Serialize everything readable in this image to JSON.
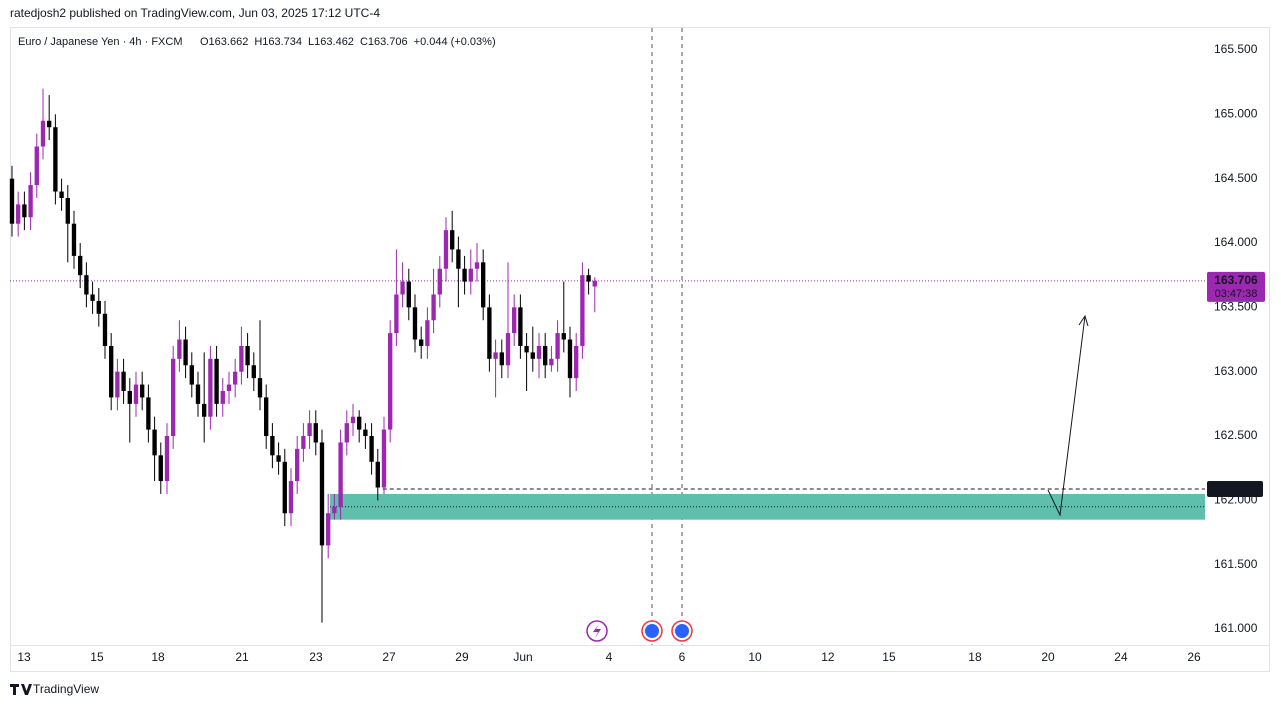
{
  "header": {
    "publisher": "ratedjosh2 published on TradingView.com, Jun 03, 2025 17:12 UTC-4"
  },
  "legend": {
    "symbol": "Euro / Japanese Yen · 4h · FXCM",
    "items": [
      "O163.662",
      "H163.734",
      "L163.462",
      "C163.706",
      "+0.044 (+0.03%)"
    ]
  },
  "footer": {
    "brand": "TradingView"
  },
  "chart_data": {
    "type": "candlestick",
    "up_color": "#9c27b0",
    "down_color": "#000000",
    "ylim": [
      160.876,
      165.671
    ],
    "yticks": [
      {
        "value": 161,
        "label": "161.000"
      },
      {
        "value": 161.5,
        "label": "161.500"
      },
      {
        "value": 162,
        "label": "162.000"
      },
      {
        "value": 162.5,
        "label": "162.500"
      },
      {
        "value": 163,
        "label": "163.000"
      },
      {
        "value": 163.5,
        "label": "163.500"
      },
      {
        "value": 164,
        "label": "164.000"
      },
      {
        "value": 164.5,
        "label": "164.500"
      },
      {
        "value": 165,
        "label": "165.000"
      },
      {
        "value": 165.5,
        "label": "165.500"
      }
    ],
    "xlim": [
      -0.32,
      192.42
    ],
    "xticks": [
      {
        "value": 1.94,
        "label": "13"
      },
      {
        "value": 13.71,
        "label": "15"
      },
      {
        "value": 23.55,
        "label": "18"
      },
      {
        "value": 37.1,
        "label": "21"
      },
      {
        "value": 49.03,
        "label": "23"
      },
      {
        "value": 60.81,
        "label": "27"
      },
      {
        "value": 72.58,
        "label": "29"
      },
      {
        "value": 82.42,
        "label": "Jun"
      },
      {
        "value": 96.29,
        "label": "4"
      },
      {
        "value": 108.06,
        "label": "6"
      },
      {
        "value": 119.84,
        "label": "10"
      },
      {
        "value": 131.6,
        "label": "12"
      },
      {
        "value": 141.45,
        "label": "15"
      },
      {
        "value": 155.32,
        "label": "18"
      },
      {
        "value": 167.1,
        "label": "20"
      },
      {
        "value": 178.87,
        "label": "24"
      },
      {
        "value": 190.65,
        "label": "26"
      }
    ],
    "ohlc": [
      [
        164.5,
        164.6,
        164.05,
        164.15
      ],
      [
        164.15,
        164.4,
        164.05,
        164.3
      ],
      [
        164.3,
        164.4,
        164.1,
        164.2
      ],
      [
        164.2,
        164.55,
        164.1,
        164.45
      ],
      [
        164.45,
        164.85,
        164.35,
        164.75
      ],
      [
        164.75,
        165.2,
        164.65,
        164.95
      ],
      [
        164.95,
        165.15,
        164.8,
        164.9
      ],
      [
        164.9,
        165.0,
        164.3,
        164.4
      ],
      [
        164.4,
        164.5,
        164.25,
        164.35
      ],
      [
        164.35,
        164.45,
        163.85,
        164.15
      ],
      [
        164.15,
        164.25,
        163.8,
        163.9
      ],
      [
        163.9,
        164.0,
        163.65,
        163.75
      ],
      [
        163.75,
        163.85,
        163.5,
        163.6
      ],
      [
        163.6,
        163.7,
        163.45,
        163.55
      ],
      [
        163.55,
        163.65,
        163.35,
        163.45
      ],
      [
        163.45,
        163.55,
        163.1,
        163.2
      ],
      [
        163.2,
        163.3,
        162.7,
        162.8
      ],
      [
        162.8,
        163.1,
        162.7,
        163.0
      ],
      [
        163.0,
        163.1,
        162.75,
        162.85
      ],
      [
        162.85,
        162.95,
        162.45,
        162.75
      ],
      [
        162.75,
        163.0,
        162.65,
        162.9
      ],
      [
        162.9,
        163.0,
        162.7,
        162.8
      ],
      [
        162.8,
        162.9,
        162.45,
        162.55
      ],
      [
        162.55,
        162.65,
        162.15,
        162.35
      ],
      [
        162.35,
        162.45,
        162.05,
        162.15
      ],
      [
        162.15,
        162.6,
        162.05,
        162.5
      ],
      [
        162.5,
        163.2,
        162.4,
        163.1
      ],
      [
        163.1,
        163.4,
        163.0,
        163.25
      ],
      [
        163.25,
        163.35,
        162.95,
        163.05
      ],
      [
        163.05,
        163.15,
        162.8,
        162.9
      ],
      [
        162.9,
        163.0,
        162.65,
        162.75
      ],
      [
        162.75,
        163.15,
        162.45,
        162.65
      ],
      [
        162.65,
        163.2,
        162.55,
        163.1
      ],
      [
        163.1,
        163.2,
        162.65,
        162.75
      ],
      [
        162.75,
        162.95,
        162.65,
        162.85
      ],
      [
        162.85,
        163.0,
        162.75,
        162.9
      ],
      [
        162.9,
        163.1,
        162.8,
        163.0
      ],
      [
        163.0,
        163.35,
        162.9,
        163.2
      ],
      [
        163.2,
        163.3,
        162.95,
        163.05
      ],
      [
        163.05,
        163.15,
        162.85,
        162.95
      ],
      [
        162.95,
        163.4,
        162.7,
        162.8
      ],
      [
        162.8,
        162.9,
        162.4,
        162.5
      ],
      [
        162.5,
        162.6,
        162.25,
        162.35
      ],
      [
        162.35,
        162.45,
        162.2,
        162.3
      ],
      [
        162.3,
        162.4,
        161.8,
        161.9
      ],
      [
        161.9,
        162.25,
        161.8,
        162.15
      ],
      [
        162.15,
        162.5,
        162.05,
        162.4
      ],
      [
        162.4,
        162.6,
        162.3,
        162.5
      ],
      [
        162.5,
        162.7,
        162.4,
        162.6
      ],
      [
        162.6,
        162.7,
        162.35,
        162.45
      ],
      [
        162.45,
        162.55,
        161.05,
        161.65
      ],
      [
        161.65,
        162.05,
        161.55,
        161.9
      ],
      [
        161.9,
        162.05,
        161.85,
        161.95
      ],
      [
        161.95,
        162.55,
        161.85,
        162.45
      ],
      [
        162.45,
        162.7,
        162.35,
        162.6
      ],
      [
        162.6,
        162.75,
        162.5,
        162.65
      ],
      [
        162.65,
        162.7,
        162.45,
        162.55
      ],
      [
        162.55,
        162.6,
        162.4,
        162.5
      ],
      [
        162.5,
        162.6,
        162.2,
        162.3
      ],
      [
        162.3,
        162.4,
        162.0,
        162.1
      ],
      [
        162.1,
        162.65,
        162.05,
        162.55
      ],
      [
        162.55,
        163.4,
        162.45,
        163.3
      ],
      [
        163.3,
        163.95,
        163.2,
        163.6
      ],
      [
        163.6,
        163.85,
        163.5,
        163.7
      ],
      [
        163.7,
        163.8,
        163.4,
        163.5
      ],
      [
        163.5,
        163.6,
        163.15,
        163.25
      ],
      [
        163.25,
        163.35,
        163.1,
        163.2
      ],
      [
        163.2,
        163.5,
        163.1,
        163.4
      ],
      [
        163.4,
        163.8,
        163.3,
        163.6
      ],
      [
        163.6,
        163.9,
        163.5,
        163.8
      ],
      [
        163.8,
        164.2,
        163.7,
        164.1
      ],
      [
        164.1,
        164.25,
        163.85,
        163.95
      ],
      [
        163.95,
        164.05,
        163.5,
        163.8
      ],
      [
        163.8,
        163.9,
        163.6,
        163.7
      ],
      [
        163.7,
        163.95,
        163.6,
        163.8
      ],
      [
        163.8,
        164.0,
        163.7,
        163.85
      ],
      [
        163.85,
        163.95,
        163.4,
        163.5
      ],
      [
        163.5,
        163.6,
        163.0,
        163.1
      ],
      [
        163.1,
        163.25,
        162.8,
        163.15
      ],
      [
        163.15,
        163.25,
        162.95,
        163.05
      ],
      [
        163.05,
        163.85,
        162.95,
        163.3
      ],
      [
        163.3,
        163.6,
        163.2,
        163.5
      ],
      [
        163.5,
        163.6,
        163.1,
        163.2
      ],
      [
        163.2,
        163.3,
        162.85,
        163.15
      ],
      [
        163.15,
        163.35,
        163.0,
        163.1
      ],
      [
        163.1,
        163.3,
        162.95,
        163.2
      ],
      [
        163.2,
        163.3,
        162.95,
        163.05
      ],
      [
        163.05,
        163.2,
        163.0,
        163.1
      ],
      [
        163.1,
        163.4,
        163.0,
        163.3
      ],
      [
        163.3,
        163.7,
        163.15,
        163.25
      ],
      [
        163.25,
        163.35,
        162.8,
        162.95
      ],
      [
        162.95,
        163.3,
        162.85,
        163.2
      ],
      [
        163.2,
        163.85,
        163.1,
        163.75
      ],
      [
        163.75,
        163.8,
        163.6,
        163.7
      ],
      [
        163.662,
        163.734,
        163.462,
        163.706
      ]
    ],
    "last_price": 163.706,
    "countdown": "03:47:38",
    "price_color": "#9c27b0",
    "level": {
      "value": 162.088,
      "start": 59.8
    },
    "zone": {
      "from": 161.85,
      "to": 162.05,
      "start": 51.3,
      "color": "#5fbfad"
    }
  }
}
